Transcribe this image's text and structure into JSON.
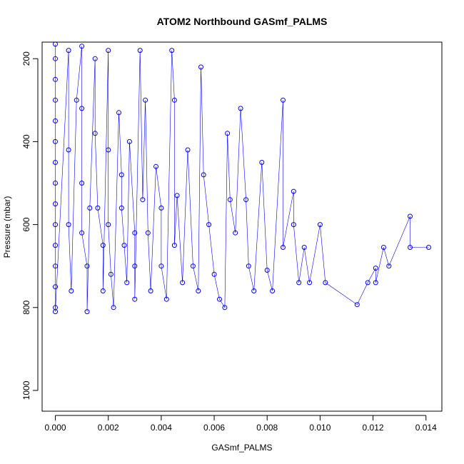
{
  "chart_data": {
    "type": "scatter",
    "title": "ATOM2 Northbound GASmf_PALMS",
    "xlabel": "GASmf_PALMS",
    "ylabel": "Pressure (mbar)",
    "xlim": [
      -0.0005,
      0.0146
    ],
    "ylim": [
      1050,
      160
    ],
    "y_reversed": true,
    "x_ticks": [
      "0.000",
      "0.002",
      "0.004",
      "0.006",
      "0.008",
      "0.010",
      "0.012",
      "0.014"
    ],
    "y_ticks": [
      "200",
      "400",
      "600",
      "800",
      "1000"
    ],
    "grid": false,
    "legend": "none",
    "colors": {
      "series": "#0000ff",
      "axis": "#000000",
      "background": "#ffffff"
    },
    "markers": "open-circle",
    "connected": true,
    "series": [
      {
        "points": [
          [
            0.0,
            165
          ],
          [
            0.0,
            200
          ],
          [
            0.0,
            250
          ],
          [
            0.0,
            300
          ],
          [
            0.0,
            350
          ],
          [
            0.0,
            400
          ],
          [
            0.0,
            450
          ],
          [
            0.0,
            500
          ],
          [
            0.0,
            550
          ],
          [
            0.0,
            600
          ],
          [
            0.0,
            650
          ],
          [
            0.0,
            700
          ],
          [
            0.0,
            750
          ],
          [
            0.0,
            800
          ],
          [
            0.0,
            810
          ],
          [
            0.0005,
            180
          ],
          [
            0.0005,
            420
          ],
          [
            0.0005,
            600
          ],
          [
            0.0006,
            760
          ],
          [
            0.0008,
            300
          ],
          [
            0.001,
            170
          ],
          [
            0.001,
            320
          ],
          [
            0.001,
            500
          ],
          [
            0.001,
            620
          ],
          [
            0.0012,
            700
          ],
          [
            0.0012,
            810
          ],
          [
            0.0013,
            560
          ],
          [
            0.0015,
            200
          ],
          [
            0.0015,
            380
          ],
          [
            0.0016,
            560
          ],
          [
            0.0018,
            650
          ],
          [
            0.0018,
            760
          ],
          [
            0.002,
            180
          ],
          [
            0.002,
            420
          ],
          [
            0.002,
            600
          ],
          [
            0.0021,
            720
          ],
          [
            0.0022,
            800
          ],
          [
            0.0024,
            330
          ],
          [
            0.0025,
            480
          ],
          [
            0.0025,
            560
          ],
          [
            0.0026,
            650
          ],
          [
            0.0027,
            740
          ],
          [
            0.0028,
            400
          ],
          [
            0.003,
            620
          ],
          [
            0.003,
            700
          ],
          [
            0.003,
            780
          ],
          [
            0.0032,
            180
          ],
          [
            0.0033,
            540
          ],
          [
            0.0034,
            300
          ],
          [
            0.0035,
            620
          ],
          [
            0.0036,
            760
          ],
          [
            0.0038,
            460
          ],
          [
            0.004,
            560
          ],
          [
            0.004,
            700
          ],
          [
            0.0042,
            780
          ],
          [
            0.0044,
            180
          ],
          [
            0.0045,
            300
          ],
          [
            0.0045,
            650
          ],
          [
            0.0046,
            530
          ],
          [
            0.0048,
            740
          ],
          [
            0.005,
            420
          ],
          [
            0.0052,
            700
          ],
          [
            0.0054,
            760
          ],
          [
            0.0055,
            220
          ],
          [
            0.0056,
            480
          ],
          [
            0.0058,
            600
          ],
          [
            0.006,
            720
          ],
          [
            0.0062,
            780
          ],
          [
            0.0064,
            800
          ],
          [
            0.0065,
            380
          ],
          [
            0.0066,
            540
          ],
          [
            0.0068,
            620
          ],
          [
            0.007,
            320
          ],
          [
            0.0072,
            540
          ],
          [
            0.0073,
            700
          ],
          [
            0.0075,
            760
          ],
          [
            0.0078,
            450
          ],
          [
            0.008,
            710
          ],
          [
            0.0082,
            760
          ],
          [
            0.0086,
            300
          ],
          [
            0.0086,
            655
          ],
          [
            0.009,
            520
          ],
          [
            0.009,
            600
          ],
          [
            0.0092,
            740
          ],
          [
            0.0094,
            655
          ],
          [
            0.0096,
            740
          ],
          [
            0.01,
            600
          ],
          [
            0.0102,
            740
          ],
          [
            0.0114,
            793
          ],
          [
            0.0118,
            740
          ],
          [
            0.0121,
            705
          ],
          [
            0.0121,
            740
          ],
          [
            0.0124,
            655
          ],
          [
            0.0126,
            700
          ],
          [
            0.0134,
            580
          ],
          [
            0.0134,
            655
          ],
          [
            0.0141,
            655
          ]
        ]
      }
    ]
  }
}
